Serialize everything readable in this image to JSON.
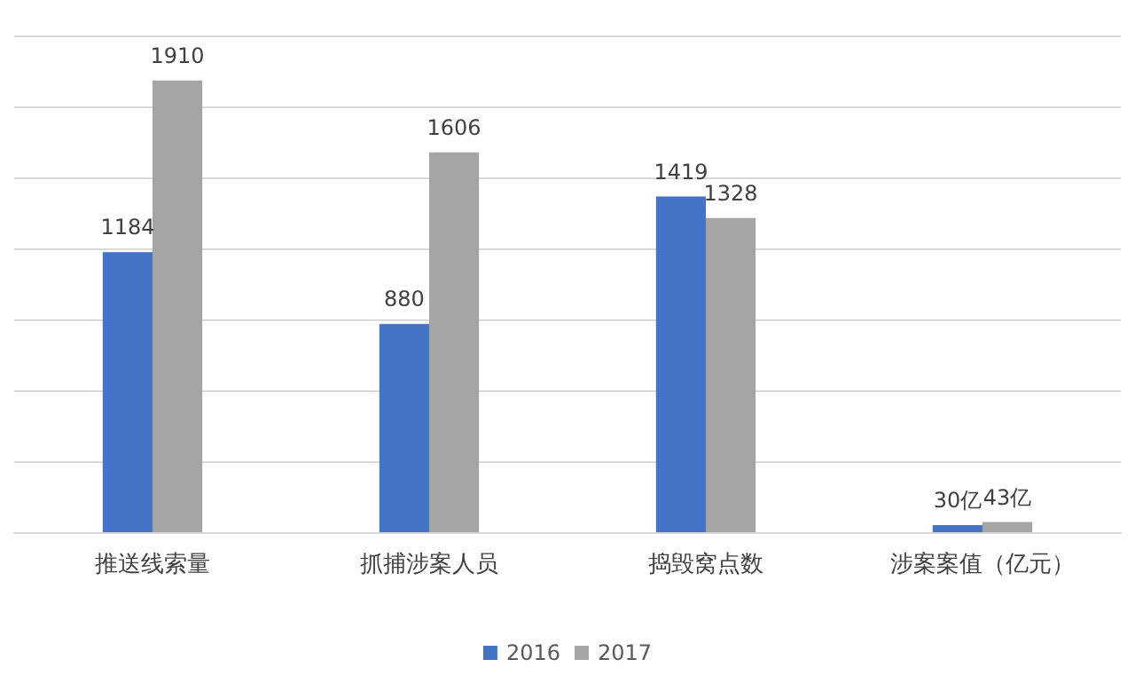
{
  "chart_data": {
    "type": "bar",
    "categories": [
      "推送线索量",
      "抓捕涉案人员",
      "捣毁窝点数",
      "涉案案值（亿元）"
    ],
    "series": [
      {
        "name": "2016",
        "color": "#4472c4",
        "values": [
          1184,
          880,
          1419,
          30
        ],
        "value_labels": [
          "1184",
          "880",
          "1419",
          "30亿"
        ]
      },
      {
        "name": "2017",
        "color": "#a5a5a5",
        "values": [
          1910,
          1606,
          1328,
          43
        ],
        "value_labels": [
          "1910",
          "1606",
          "1328",
          "43亿"
        ]
      }
    ],
    "grid": "y",
    "legend": "bottom",
    "tick_labels": "x"
  }
}
